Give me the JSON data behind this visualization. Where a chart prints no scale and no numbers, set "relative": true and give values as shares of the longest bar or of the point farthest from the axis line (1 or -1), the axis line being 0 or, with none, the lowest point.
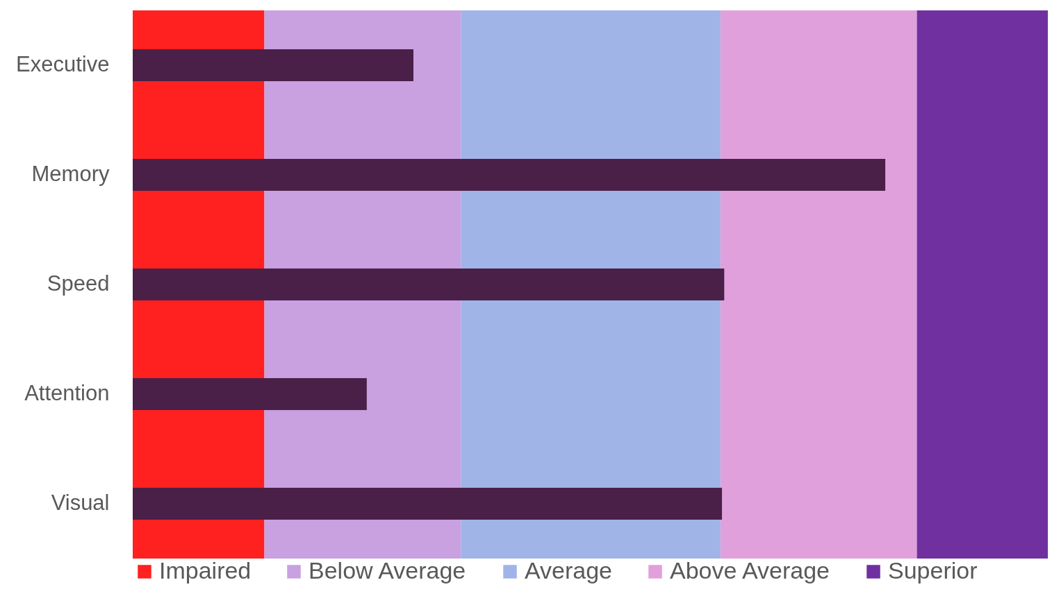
{
  "chart_data": {
    "type": "bar",
    "orientation": "horizontal",
    "relative": true,
    "legend": "bottom",
    "categories": [
      "Executive",
      "Memory",
      "Speed",
      "Attention",
      "Visual"
    ],
    "series": [
      {
        "color": "#4a2048",
        "values": [
          0.373,
          1.0,
          0.786,
          0.311,
          0.783
        ]
      }
    ],
    "bands": [
      {
        "axis": "x",
        "from": 0,
        "to": 0.175,
        "label": "Impaired",
        "color": "#ff2020"
      },
      {
        "axis": "x",
        "from": 0.175,
        "to": 0.436,
        "label": "Below Average",
        "color": "#c9a0e0"
      },
      {
        "axis": "x",
        "from": 0.436,
        "to": 0.781,
        "label": "Average",
        "color": "#a0b4e8"
      },
      {
        "axis": "x",
        "from": 0.781,
        "to": 1.042,
        "label": "Above Average",
        "color": "#e0a0dc"
      },
      {
        "axis": "x",
        "from": 1.042,
        "to": 1.216,
        "label": "Superior",
        "color": "#7030a0"
      }
    ]
  }
}
